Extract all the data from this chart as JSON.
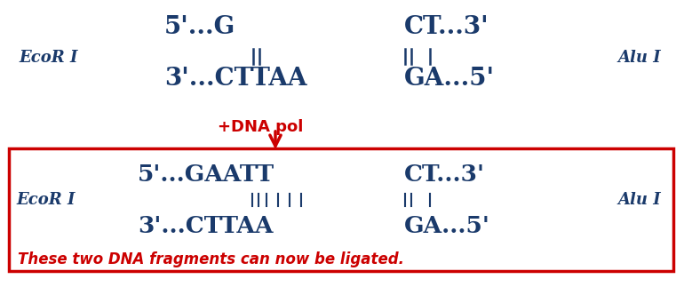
{
  "bg_color": "#ffffff",
  "dna_color": "#1a3a6b",
  "red_color": "#cc0000",
  "arrow_label": "+DNA pol",
  "ligated_text": "These two DNA fragments can now be ligated.",
  "top_left_label": "EcoR I",
  "top_right_label": "Alu I",
  "bottom_left_label": "EcoR I",
  "bottom_right_label": "Alu I",
  "top_strand1": "5'...G",
  "top_strand2": "CT...3'",
  "bottom_strand1": "3'...CTTAA",
  "bottom_strand2": "GA...5'",
  "box_top_strand1": "5'...GAATT",
  "box_top_strand2": "CT...3'",
  "box_bottom_strand1": "3'...CTTAA",
  "box_bottom_strand2": "GA...5'",
  "fig_width": 7.7,
  "fig_height": 3.23,
  "dpi": 100
}
